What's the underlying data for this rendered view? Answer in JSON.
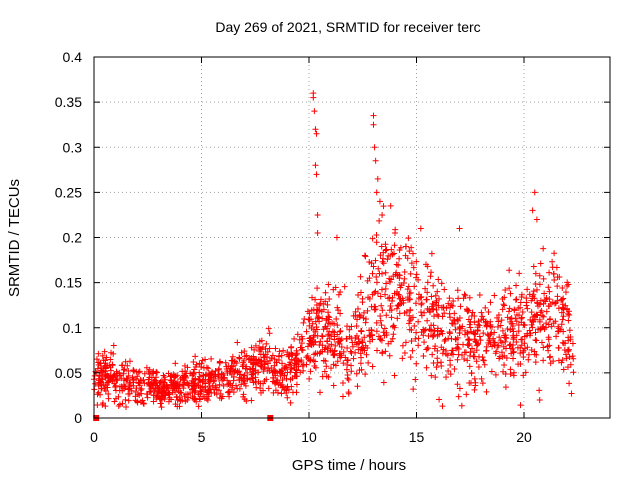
{
  "chart_data": {
    "type": "scatter",
    "title": "Day 269 of 2021, SRMTID for receiver terc",
    "xlabel": "GPS time / hours",
    "ylabel": "SRMTID / TECUs",
    "xlim": [
      0,
      24
    ],
    "ylim": [
      0,
      0.4
    ],
    "xticks": [
      "0",
      "5",
      "10",
      "15",
      "20"
    ],
    "yticks": [
      "0",
      "0.05",
      "0.1",
      "0.15",
      "0.2",
      "0.25",
      "0.3",
      "0.35",
      "0.4"
    ],
    "grid": true,
    "marker": "plus",
    "color": "#ff0000",
    "baseline_markers": [
      0.1,
      8.2
    ],
    "profile": [
      {
        "x": 0.0,
        "mean": 0.05,
        "spread": 0.02
      },
      {
        "x": 1.0,
        "mean": 0.042,
        "spread": 0.02
      },
      {
        "x": 2.0,
        "mean": 0.035,
        "spread": 0.015
      },
      {
        "x": 3.0,
        "mean": 0.035,
        "spread": 0.014
      },
      {
        "x": 4.0,
        "mean": 0.035,
        "spread": 0.014
      },
      {
        "x": 5.0,
        "mean": 0.04,
        "spread": 0.016
      },
      {
        "x": 6.0,
        "mean": 0.042,
        "spread": 0.016
      },
      {
        "x": 7.0,
        "mean": 0.052,
        "spread": 0.02
      },
      {
        "x": 8.0,
        "mean": 0.06,
        "spread": 0.02
      },
      {
        "x": 9.0,
        "mean": 0.045,
        "spread": 0.016
      },
      {
        "x": 9.5,
        "mean": 0.065,
        "spread": 0.02
      },
      {
        "x": 10.0,
        "mean": 0.085,
        "spread": 0.03
      },
      {
        "x": 10.5,
        "mean": 0.1,
        "spread": 0.04
      },
      {
        "x": 11.0,
        "mean": 0.09,
        "spread": 0.035
      },
      {
        "x": 12.0,
        "mean": 0.075,
        "spread": 0.03
      },
      {
        "x": 13.0,
        "mean": 0.12,
        "spread": 0.05
      },
      {
        "x": 14.0,
        "mean": 0.14,
        "spread": 0.05
      },
      {
        "x": 15.0,
        "mean": 0.12,
        "spread": 0.045
      },
      {
        "x": 16.0,
        "mean": 0.1,
        "spread": 0.04
      },
      {
        "x": 17.0,
        "mean": 0.09,
        "spread": 0.035
      },
      {
        "x": 18.0,
        "mean": 0.085,
        "spread": 0.03
      },
      {
        "x": 19.0,
        "mean": 0.09,
        "spread": 0.03
      },
      {
        "x": 20.0,
        "mean": 0.1,
        "spread": 0.04
      },
      {
        "x": 21.0,
        "mean": 0.11,
        "spread": 0.04
      },
      {
        "x": 22.0,
        "mean": 0.1,
        "spread": 0.04
      },
      {
        "x": 22.3,
        "mean": 0.06,
        "spread": 0.03
      }
    ],
    "points_count": 1800,
    "x_range_data": [
      0.0,
      22.3
    ],
    "spikes": [
      {
        "x": 10.2,
        "y": 0.36
      },
      {
        "x": 10.2,
        "y": 0.355
      },
      {
        "x": 10.25,
        "y": 0.34
      },
      {
        "x": 10.3,
        "y": 0.32
      },
      {
        "x": 10.35,
        "y": 0.315
      },
      {
        "x": 10.3,
        "y": 0.28
      },
      {
        "x": 10.35,
        "y": 0.27
      },
      {
        "x": 10.4,
        "y": 0.225
      },
      {
        "x": 10.4,
        "y": 0.205
      },
      {
        "x": 13.0,
        "y": 0.335
      },
      {
        "x": 13.0,
        "y": 0.325
      },
      {
        "x": 13.05,
        "y": 0.3
      },
      {
        "x": 13.1,
        "y": 0.285
      },
      {
        "x": 13.2,
        "y": 0.265
      },
      {
        "x": 13.15,
        "y": 0.25
      },
      {
        "x": 13.3,
        "y": 0.24
      },
      {
        "x": 13.8,
        "y": 0.235
      },
      {
        "x": 13.4,
        "y": 0.225
      },
      {
        "x": 14.0,
        "y": 0.205
      },
      {
        "x": 15.2,
        "y": 0.21
      },
      {
        "x": 17.0,
        "y": 0.21
      },
      {
        "x": 20.5,
        "y": 0.25
      },
      {
        "x": 20.4,
        "y": 0.23
      },
      {
        "x": 20.6,
        "y": 0.22
      },
      {
        "x": 11.3,
        "y": 0.2
      },
      {
        "x": 12.6,
        "y": 0.18
      },
      {
        "x": 14.5,
        "y": 0.19
      }
    ]
  }
}
